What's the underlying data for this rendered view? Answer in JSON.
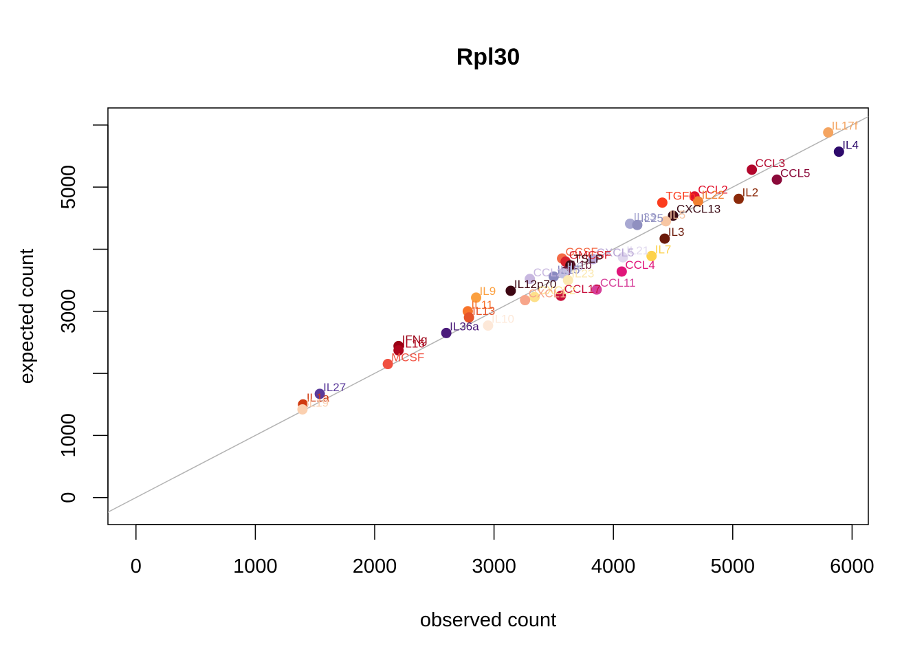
{
  "chart_data": {
    "type": "scatter",
    "title": "Rpl30",
    "xlabel": "observed count",
    "ylabel": "expected count",
    "xlim": [
      -235,
      6136
    ],
    "ylim": [
      -435,
      6275
    ],
    "x_ticks": [
      0,
      1000,
      2000,
      3000,
      4000,
      5000,
      6000
    ],
    "y_ticks": [
      0,
      1000,
      3000,
      5000
    ],
    "reference_line": "y = x",
    "reference_line_color": "#b3b3b3",
    "points": [
      {
        "label": "IL17f",
        "x": 5800,
        "y": 5880,
        "color": "#f4a460"
      },
      {
        "label": "IL4",
        "x": 5890,
        "y": 5570,
        "color": "#2d0a6b"
      },
      {
        "label": "CCL3",
        "x": 5160,
        "y": 5280,
        "color": "#b2062c"
      },
      {
        "label": "CCL5",
        "x": 5370,
        "y": 5120,
        "color": "#8b0a3a"
      },
      {
        "label": "IL2",
        "x": 5050,
        "y": 4810,
        "color": "#8b2a0a"
      },
      {
        "label": "CCL2",
        "x": 4680,
        "y": 4850,
        "color": "#e0102a"
      },
      {
        "label": "IL22",
        "x": 4710,
        "y": 4770,
        "color": "#f08030"
      },
      {
        "label": "TGFb",
        "x": 4410,
        "y": 4750,
        "color": "#fb3c1e"
      },
      {
        "label": "CXCL13",
        "x": 4500,
        "y": 4540,
        "color": "#3d0d17"
      },
      {
        "label": "IL5",
        "x": 4440,
        "y": 4450,
        "color": "#f7c6a3"
      },
      {
        "label": "IL33",
        "x": 4140,
        "y": 4410,
        "color": "#a8a8d2"
      },
      {
        "label": "IL25",
        "x": 4200,
        "y": 4390,
        "color": "#9090c0"
      },
      {
        "label": "IL3",
        "x": 4430,
        "y": 4170,
        "color": "#6b1a0a"
      },
      {
        "label": "IL7",
        "x": 4320,
        "y": 3890,
        "color": "#fdd24a"
      },
      {
        "label": "IL21",
        "x": 4080,
        "y": 3870,
        "color": "#e0d8ee"
      },
      {
        "label": "CXCL5",
        "x": 3830,
        "y": 3840,
        "color": "#b8a6d6"
      },
      {
        "label": "GCSF",
        "x": 3570,
        "y": 3850,
        "color": "#f46a46"
      },
      {
        "label": "GMCSF",
        "x": 3600,
        "y": 3800,
        "color": "#d9232e"
      },
      {
        "label": "TSLP",
        "x": 3640,
        "y": 3740,
        "color": "#3a0a12"
      },
      {
        "label": "CCL4",
        "x": 4070,
        "y": 3640,
        "color": "#e0157a"
      },
      {
        "label": "IL1b",
        "x": 3600,
        "y": 3640,
        "color": "#6a1a3a"
      },
      {
        "label": "IL6",
        "x": 3580,
        "y": 3610,
        "color": "#c0c0e0"
      },
      {
        "label": "IL15",
        "x": 3500,
        "y": 3560,
        "color": "#8a8ac0"
      },
      {
        "label": "CCL20",
        "x": 3300,
        "y": 3520,
        "color": "#c8b8e0"
      },
      {
        "label": "IL23",
        "x": 3620,
        "y": 3500,
        "color": "#fbe8b0"
      },
      {
        "label": "CCL11",
        "x": 3860,
        "y": 3350,
        "color": "#d6409a"
      },
      {
        "label": "CCL17",
        "x": 3560,
        "y": 3250,
        "color": "#c8103c"
      },
      {
        "label": "IL12p70",
        "x": 3140,
        "y": 3330,
        "color": "#3d0612"
      },
      {
        "label": "CXCL2",
        "x": 3340,
        "y": 3230,
        "color": "#fde08a"
      },
      {
        "label": "CXCL1",
        "x": 3260,
        "y": 3180,
        "color": "#f7a58a"
      },
      {
        "label": "IL9",
        "x": 2850,
        "y": 3220,
        "color": "#fba040"
      },
      {
        "label": "IL11",
        "x": 2780,
        "y": 3000,
        "color": "#f8742a"
      },
      {
        "label": "IL13",
        "x": 2790,
        "y": 2900,
        "color": "#e5542a"
      },
      {
        "label": "IL10",
        "x": 2950,
        "y": 2770,
        "color": "#fde8d8"
      },
      {
        "label": "IL36a",
        "x": 2600,
        "y": 2650,
        "color": "#4a1a7a"
      },
      {
        "label": "IFNg",
        "x": 2200,
        "y": 2440,
        "color": "#9a0014"
      },
      {
        "label": "IL16",
        "x": 2200,
        "y": 2370,
        "color": "#b0061e"
      },
      {
        "label": "MCSF",
        "x": 2110,
        "y": 2150,
        "color": "#f05040"
      },
      {
        "label": "IL27",
        "x": 1540,
        "y": 1670,
        "color": "#5a3a9a"
      },
      {
        "label": "IL1a",
        "x": 1400,
        "y": 1500,
        "color": "#d03a10"
      },
      {
        "label": "IL19",
        "x": 1395,
        "y": 1420,
        "color": "#fbd0b0"
      }
    ]
  }
}
